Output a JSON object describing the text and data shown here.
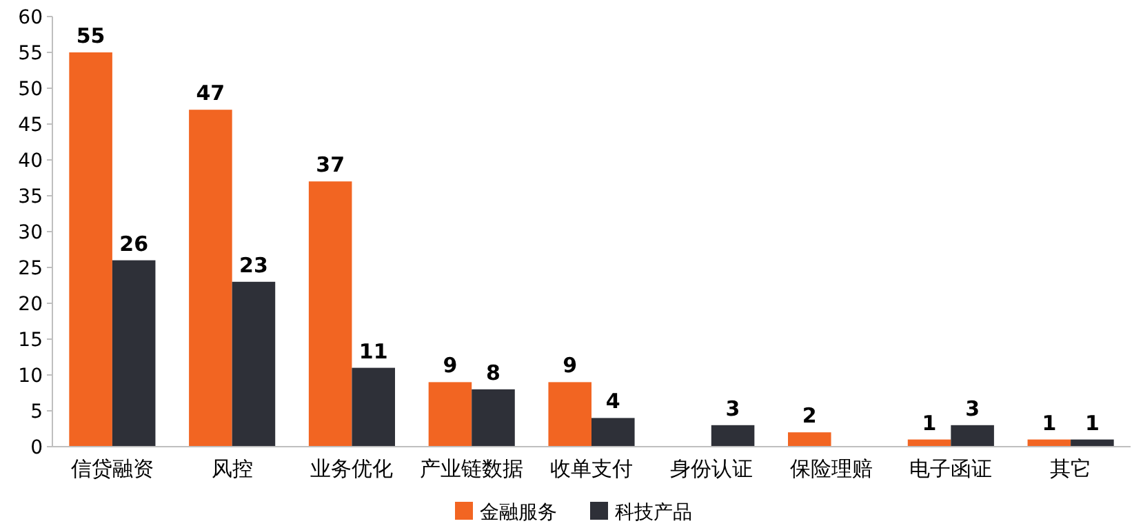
{
  "chart_data": {
    "type": "bar",
    "categories": [
      "信贷融资",
      "风控",
      "业务优化",
      "产业链数据",
      "收单支付",
      "身份认证",
      "保险理赔",
      "电子函证",
      "其它"
    ],
    "series": [
      {
        "name": "金融服务",
        "color": "#f26522",
        "values": [
          55,
          47,
          37,
          9,
          9,
          null,
          2,
          1,
          1
        ]
      },
      {
        "name": "科技产品",
        "color": "#2e3038",
        "values": [
          26,
          23,
          11,
          8,
          4,
          3,
          null,
          3,
          1
        ]
      }
    ],
    "ylim": [
      0,
      60
    ],
    "yticks": [
      0,
      5,
      10,
      15,
      20,
      25,
      30,
      35,
      40,
      45,
      50,
      55,
      60
    ],
    "data_labels": true,
    "legend": "bottom",
    "grid": false
  }
}
